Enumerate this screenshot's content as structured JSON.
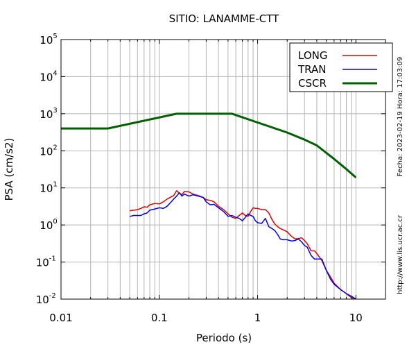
{
  "chart_data": {
    "type": "line",
    "title": "SITIO: LANAMME-CTT",
    "xlabel": "Periodo (s)",
    "ylabel": "PSA (cm/s2)",
    "xscale": "log",
    "yscale": "log",
    "xlim": [
      0.01,
      20
    ],
    "ylim": [
      0.01,
      100000
    ],
    "grid": true,
    "legend_position": "top-right",
    "x_tick_labels": [
      {
        "value": 0.01,
        "label": "0.01"
      },
      {
        "value": 0.1,
        "label": "0.1"
      },
      {
        "value": 1,
        "label": "1"
      },
      {
        "value": 10,
        "label": "10"
      }
    ],
    "y_tick_labels": [
      {
        "value": 100000,
        "base": "10",
        "exp": "5"
      },
      {
        "value": 10000,
        "base": "10",
        "exp": "4"
      },
      {
        "value": 1000,
        "base": "10",
        "exp": "3"
      },
      {
        "value": 100,
        "base": "10",
        "exp": "2"
      },
      {
        "value": 10,
        "base": "10",
        "exp": "1"
      },
      {
        "value": 1,
        "base": "10",
        "exp": "0"
      },
      {
        "value": 0.1,
        "base": "10",
        "exp": "-1"
      },
      {
        "value": 0.01,
        "base": "10",
        "exp": "-2"
      }
    ],
    "side_texts": {
      "date": "Fecha: 2023-02-19  Hora: 17:03:09",
      "url": "http://www.lis.ucr.ac.cr"
    },
    "series": [
      {
        "name": "LONG",
        "color": "#e00000",
        "x": [
          0.05,
          0.055,
          0.06,
          0.065,
          0.07,
          0.075,
          0.08,
          0.09,
          0.1,
          0.11,
          0.12,
          0.13,
          0.14,
          0.15,
          0.16,
          0.17,
          0.18,
          0.2,
          0.22,
          0.25,
          0.28,
          0.3,
          0.33,
          0.36,
          0.4,
          0.45,
          0.5,
          0.55,
          0.6,
          0.65,
          0.7,
          0.75,
          0.8,
          0.85,
          0.9,
          0.95,
          1.0,
          1.1,
          1.2,
          1.3,
          1.4,
          1.5,
          1.6,
          1.7,
          1.8,
          2.0,
          2.2,
          2.4,
          2.6,
          2.8,
          3.0,
          3.2,
          3.5,
          3.8,
          4.0,
          4.5,
          5.0,
          5.5,
          6.0,
          7.0,
          8.0,
          9.0,
          10.0
        ],
        "y": [
          2.4,
          2.5,
          2.6,
          2.8,
          3.1,
          3.0,
          3.5,
          3.8,
          3.7,
          4.2,
          5.0,
          5.6,
          6.2,
          8.4,
          7.2,
          6.6,
          8.0,
          7.8,
          6.8,
          6.2,
          5.5,
          4.8,
          4.6,
          4.2,
          3.2,
          2.6,
          2.0,
          1.6,
          1.5,
          1.8,
          2.1,
          1.8,
          1.7,
          2.3,
          2.9,
          2.8,
          2.8,
          2.6,
          2.6,
          2.1,
          1.4,
          1.05,
          0.9,
          0.8,
          0.75,
          0.65,
          0.5,
          0.42,
          0.43,
          0.45,
          0.38,
          0.31,
          0.2,
          0.2,
          0.17,
          0.11,
          0.06,
          0.04,
          0.027,
          0.018,
          0.014,
          0.011,
          0.01
        ]
      },
      {
        "name": "TRAN",
        "color": "#0000e0",
        "x": [
          0.05,
          0.055,
          0.06,
          0.065,
          0.07,
          0.075,
          0.08,
          0.09,
          0.1,
          0.11,
          0.12,
          0.13,
          0.14,
          0.15,
          0.16,
          0.17,
          0.18,
          0.2,
          0.22,
          0.25,
          0.28,
          0.3,
          0.33,
          0.36,
          0.4,
          0.45,
          0.5,
          0.55,
          0.6,
          0.65,
          0.7,
          0.75,
          0.8,
          0.85,
          0.9,
          0.95,
          1.0,
          1.1,
          1.2,
          1.3,
          1.4,
          1.5,
          1.6,
          1.7,
          1.8,
          2.0,
          2.2,
          2.4,
          2.6,
          2.8,
          3.0,
          3.2,
          3.5,
          3.8,
          4.0,
          4.5,
          5.0,
          5.5,
          6.0,
          7.0,
          8.0,
          9.0,
          10.0
        ],
        "y": [
          1.7,
          1.8,
          1.8,
          1.8,
          2.0,
          2.1,
          2.5,
          2.7,
          2.9,
          2.8,
          3.2,
          4.0,
          5.0,
          6.0,
          7.4,
          6.0,
          6.8,
          6.0,
          6.5,
          6.0,
          5.5,
          4.2,
          3.5,
          3.6,
          2.9,
          2.3,
          1.7,
          1.8,
          1.6,
          1.5,
          1.3,
          1.6,
          2.0,
          1.8,
          1.7,
          1.3,
          1.15,
          1.1,
          1.5,
          0.9,
          0.8,
          0.7,
          0.55,
          0.42,
          0.4,
          0.4,
          0.37,
          0.38,
          0.42,
          0.35,
          0.28,
          0.25,
          0.15,
          0.12,
          0.12,
          0.12,
          0.06,
          0.035,
          0.025,
          0.018,
          0.014,
          0.012,
          0.01
        ]
      },
      {
        "name": "CSCR",
        "color": "#006000",
        "x": [
          0.01,
          0.03,
          0.15,
          0.55,
          1.0,
          2.0,
          3.0,
          4.0,
          6.0,
          8.0,
          10.0
        ],
        "y": [
          400,
          400,
          1000,
          1000,
          580,
          310,
          200,
          140,
          60,
          32,
          19
        ]
      }
    ]
  }
}
